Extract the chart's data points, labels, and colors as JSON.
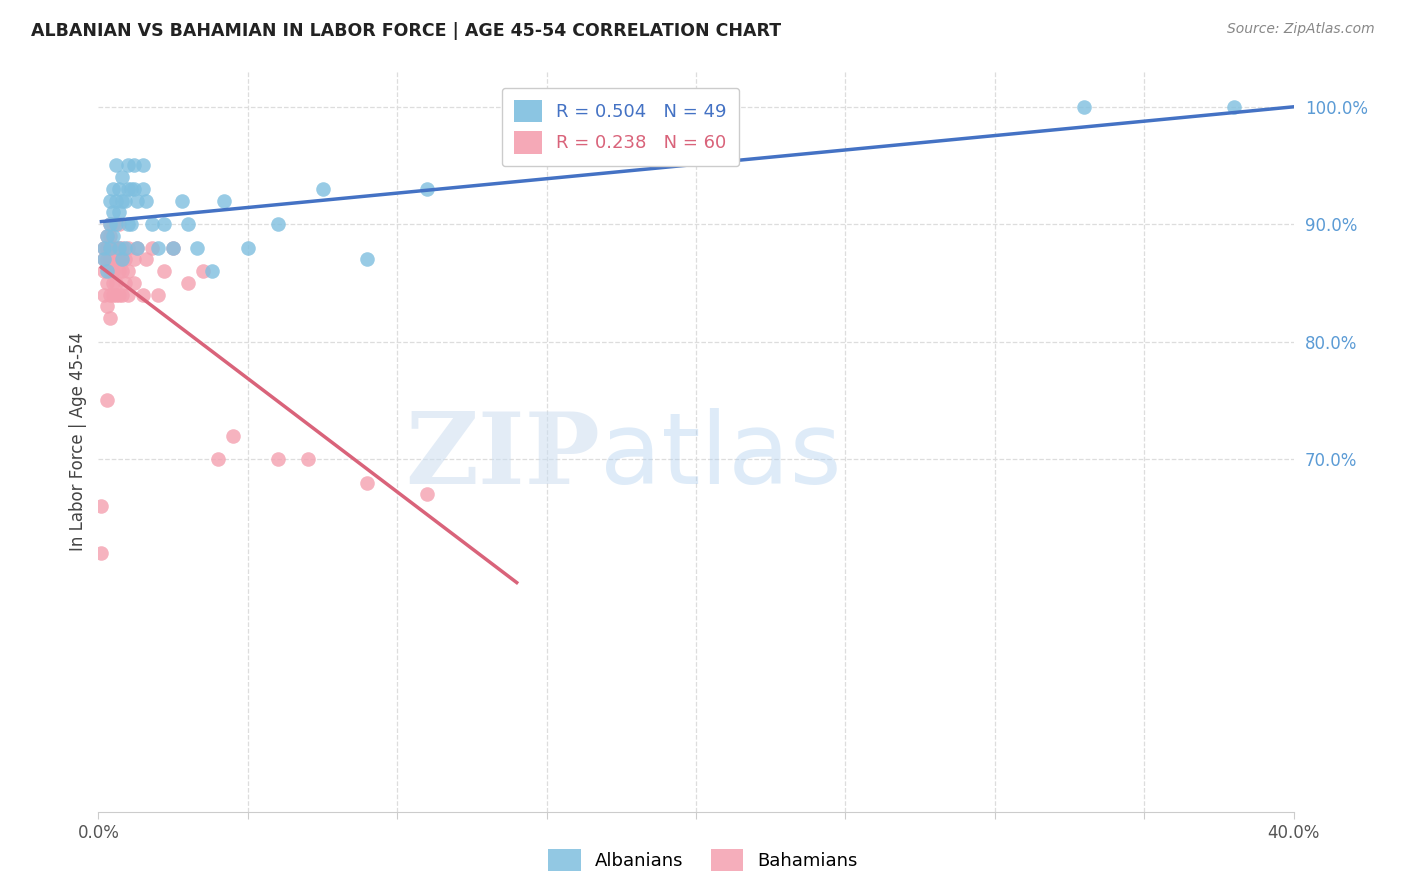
{
  "title": "ALBANIAN VS BAHAMIAN IN LABOR FORCE | AGE 45-54 CORRELATION CHART",
  "source": "Source: ZipAtlas.com",
  "ylabel": "In Labor Force | Age 45-54",
  "xlim": [
    0.0,
    0.4
  ],
  "ylim": [
    0.4,
    1.03
  ],
  "legend_blue_r": "0.504",
  "legend_blue_n": "49",
  "legend_pink_r": "0.238",
  "legend_pink_n": "60",
  "blue_color": "#7fbfdf",
  "pink_color": "#f4a0b0",
  "trendline_blue": "#4472c4",
  "trendline_pink": "#d9637a",
  "grid_color": "#dddddd",
  "albanians_x": [
    0.002,
    0.002,
    0.003,
    0.003,
    0.004,
    0.004,
    0.004,
    0.005,
    0.005,
    0.005,
    0.006,
    0.006,
    0.006,
    0.007,
    0.007,
    0.007,
    0.008,
    0.008,
    0.008,
    0.009,
    0.009,
    0.01,
    0.01,
    0.01,
    0.011,
    0.011,
    0.012,
    0.012,
    0.013,
    0.013,
    0.015,
    0.015,
    0.016,
    0.018,
    0.02,
    0.022,
    0.025,
    0.028,
    0.03,
    0.033,
    0.038,
    0.042,
    0.05,
    0.06,
    0.075,
    0.09,
    0.11,
    0.33,
    0.38
  ],
  "albanians_y": [
    0.88,
    0.87,
    0.89,
    0.86,
    0.92,
    0.9,
    0.88,
    0.93,
    0.91,
    0.89,
    0.95,
    0.92,
    0.9,
    0.93,
    0.91,
    0.88,
    0.94,
    0.92,
    0.87,
    0.92,
    0.88,
    0.95,
    0.93,
    0.9,
    0.93,
    0.9,
    0.95,
    0.93,
    0.92,
    0.88,
    0.95,
    0.93,
    0.92,
    0.9,
    0.88,
    0.9,
    0.88,
    0.92,
    0.9,
    0.88,
    0.86,
    0.92,
    0.88,
    0.9,
    0.93,
    0.87,
    0.93,
    1.0,
    1.0
  ],
  "bahamians_x": [
    0.001,
    0.001,
    0.002,
    0.002,
    0.002,
    0.002,
    0.003,
    0.003,
    0.003,
    0.003,
    0.003,
    0.003,
    0.004,
    0.004,
    0.004,
    0.004,
    0.004,
    0.004,
    0.004,
    0.005,
    0.005,
    0.005,
    0.005,
    0.005,
    0.005,
    0.006,
    0.006,
    0.006,
    0.006,
    0.007,
    0.007,
    0.007,
    0.007,
    0.007,
    0.008,
    0.008,
    0.008,
    0.008,
    0.009,
    0.009,
    0.01,
    0.01,
    0.01,
    0.012,
    0.012,
    0.013,
    0.015,
    0.016,
    0.018,
    0.02,
    0.022,
    0.025,
    0.03,
    0.035,
    0.04,
    0.045,
    0.06,
    0.07,
    0.09,
    0.11
  ],
  "bahamians_y": [
    0.62,
    0.66,
    0.84,
    0.86,
    0.87,
    0.88,
    0.75,
    0.83,
    0.85,
    0.87,
    0.88,
    0.89,
    0.82,
    0.84,
    0.86,
    0.87,
    0.88,
    0.89,
    0.9,
    0.84,
    0.85,
    0.86,
    0.87,
    0.88,
    0.9,
    0.84,
    0.85,
    0.87,
    0.88,
    0.84,
    0.86,
    0.87,
    0.88,
    0.9,
    0.84,
    0.86,
    0.87,
    0.88,
    0.85,
    0.87,
    0.84,
    0.86,
    0.88,
    0.85,
    0.87,
    0.88,
    0.84,
    0.87,
    0.88,
    0.84,
    0.86,
    0.88,
    0.85,
    0.86,
    0.7,
    0.72,
    0.7,
    0.7,
    0.68,
    0.67
  ]
}
